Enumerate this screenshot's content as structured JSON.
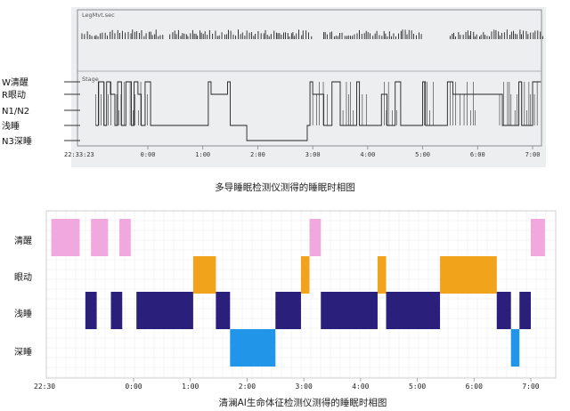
{
  "chart_data": [
    {
      "type": "line",
      "title": "",
      "caption": "多导睡眠检测仪测得的睡眠时相图",
      "xlabel": "",
      "ylabel": "",
      "panel_top_labels": [
        "LegMvt.sec",
        "Stage"
      ],
      "start_tick_label": "22:33:23",
      "x_tick_labels": [
        "0:00",
        "1:00",
        "2:00",
        "3:00",
        "4:00",
        "5:00",
        "6:00",
        "7:00"
      ],
      "x_ticks_hours_since_midnight": [
        0,
        1,
        2,
        3,
        4,
        5,
        6,
        7
      ],
      "x_range_hours": [
        -1.44,
        7.2
      ],
      "y_categories": [
        "W清醒",
        "R眼动",
        "N1/N2",
        "浅睡",
        "N3深睡"
      ],
      "y_level_index": {
        "W": 0,
        "R": 1,
        "N1/N2": 2,
        "N3": 4
      },
      "stage_series": [
        {
          "t": -0.95,
          "stage": "N1/N2"
        },
        {
          "t": -0.9,
          "stage": "W"
        },
        {
          "t": -0.8,
          "stage": "N1/N2"
        },
        {
          "t": -0.75,
          "stage": "W"
        },
        {
          "t": -0.68,
          "stage": "R"
        },
        {
          "t": -0.6,
          "stage": "N1/N2"
        },
        {
          "t": -0.55,
          "stage": "W"
        },
        {
          "t": -0.48,
          "stage": "N1/N2"
        },
        {
          "t": -0.4,
          "stage": "W"
        },
        {
          "t": -0.3,
          "stage": "N1/N2"
        },
        {
          "t": -0.25,
          "stage": "W"
        },
        {
          "t": -0.18,
          "stage": "R"
        },
        {
          "t": -0.12,
          "stage": "N1/N2"
        },
        {
          "t": -0.05,
          "stage": "W"
        },
        {
          "t": 0.05,
          "stage": "N1/N2"
        },
        {
          "t": 0.3,
          "stage": "N1/N2"
        },
        {
          "t": 0.45,
          "stage": "N1/N2"
        },
        {
          "t": 1.05,
          "stage": "N1/N2"
        },
        {
          "t": 1.1,
          "stage": "W"
        },
        {
          "t": 1.15,
          "stage": "R"
        },
        {
          "t": 1.45,
          "stage": "W"
        },
        {
          "t": 1.5,
          "stage": "N1/N2"
        },
        {
          "t": 1.8,
          "stage": "N3"
        },
        {
          "t": 2.8,
          "stage": "N3"
        },
        {
          "t": 2.9,
          "stage": "N1/N2"
        },
        {
          "t": 2.95,
          "stage": "W"
        },
        {
          "t": 3.0,
          "stage": "R"
        },
        {
          "t": 3.2,
          "stage": "N1/N2"
        },
        {
          "t": 3.35,
          "stage": "W"
        },
        {
          "t": 3.5,
          "stage": "N1/N2"
        },
        {
          "t": 3.8,
          "stage": "W"
        },
        {
          "t": 3.85,
          "stage": "N1/N2"
        },
        {
          "t": 4.25,
          "stage": "R"
        },
        {
          "t": 4.35,
          "stage": "N1/N2"
        },
        {
          "t": 4.5,
          "stage": "W"
        },
        {
          "t": 4.6,
          "stage": "N1/N2"
        },
        {
          "t": 5.0,
          "stage": "W"
        },
        {
          "t": 5.05,
          "stage": "N1/N2"
        },
        {
          "t": 5.45,
          "stage": "W"
        },
        {
          "t": 5.55,
          "stage": "R"
        },
        {
          "t": 6.4,
          "stage": "R"
        },
        {
          "t": 6.45,
          "stage": "N1/N2"
        },
        {
          "t": 6.75,
          "stage": "W"
        },
        {
          "t": 6.8,
          "stage": "N1/N2"
        },
        {
          "t": 7.0,
          "stage": "W"
        }
      ],
      "legmvt_activity_ranges_hours": [
        [
          -1.2,
          0.3
        ],
        [
          0.4,
          3.0
        ],
        [
          3.2,
          5.0
        ],
        [
          5.5,
          7.2
        ]
      ]
    },
    {
      "type": "bar",
      "title": "",
      "caption": "清澜AI生命体征检测仪测得的睡眠时相图",
      "xlabel": "",
      "ylabel": "",
      "start_tick_label": "22:30",
      "x_tick_labels": [
        "0:00",
        "1:00",
        "2:00",
        "3:00",
        "4:00",
        "5:00",
        "6:00",
        "7:00"
      ],
      "x_ticks_hours_since_midnight": [
        0,
        1,
        2,
        3,
        4,
        5,
        6,
        7
      ],
      "x_range_hours": [
        -1.5,
        7.25
      ],
      "y_categories": [
        "清醒",
        "眼动",
        "浅睡",
        "深睡"
      ],
      "colors": {
        "清醒": "#f0a8de",
        "眼动": "#f2a31c",
        "浅睡": "#2a1f7a",
        "深睡": "#2196e8"
      },
      "segments": [
        {
          "stage": "清醒",
          "start": -1.45,
          "end": -0.95
        },
        {
          "stage": "清醒",
          "start": -0.75,
          "end": -0.45
        },
        {
          "stage": "清醒",
          "start": -0.25,
          "end": -0.05
        },
        {
          "stage": "浅睡",
          "start": -0.85,
          "end": -0.65
        },
        {
          "stage": "浅睡",
          "start": -0.4,
          "end": -0.2
        },
        {
          "stage": "浅睡",
          "start": 0.05,
          "end": 1.05
        },
        {
          "stage": "眼动",
          "start": 1.05,
          "end": 1.45
        },
        {
          "stage": "浅睡",
          "start": 1.45,
          "end": 1.7
        },
        {
          "stage": "深睡",
          "start": 1.7,
          "end": 2.5
        },
        {
          "stage": "浅睡",
          "start": 2.5,
          "end": 2.95
        },
        {
          "stage": "眼动",
          "start": 2.95,
          "end": 3.1
        },
        {
          "stage": "清醒",
          "start": 3.1,
          "end": 3.3
        },
        {
          "stage": "浅睡",
          "start": 3.3,
          "end": 4.3
        },
        {
          "stage": "眼动",
          "start": 4.3,
          "end": 4.45
        },
        {
          "stage": "浅睡",
          "start": 4.45,
          "end": 5.4
        },
        {
          "stage": "眼动",
          "start": 5.4,
          "end": 6.4
        },
        {
          "stage": "浅睡",
          "start": 6.4,
          "end": 6.65
        },
        {
          "stage": "深睡",
          "start": 6.65,
          "end": 6.8
        },
        {
          "stage": "浅睡",
          "start": 6.8,
          "end": 7.0
        },
        {
          "stage": "清醒",
          "start": 7.0,
          "end": 7.25
        }
      ]
    }
  ]
}
